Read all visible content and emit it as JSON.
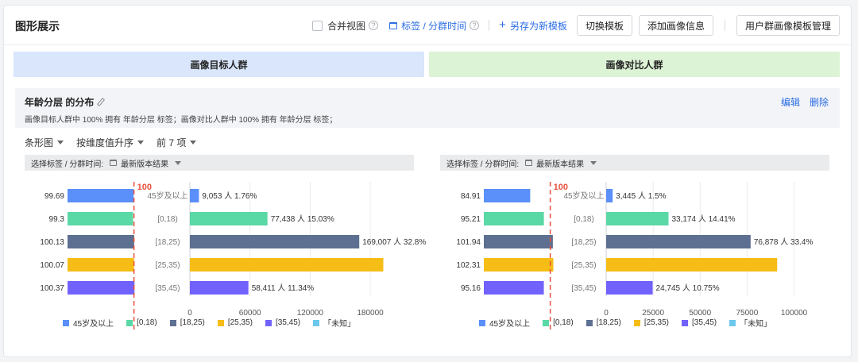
{
  "header": {
    "title": "图形展示",
    "merge_view_label": "合并视图",
    "tag_time_label": "标签 / 分群时间",
    "save_template_label": "另存为新模板",
    "switch_template_label": "切换模板",
    "add_portrait_label": "添加画像信息",
    "manage_template_label": "用户群画像模板管理"
  },
  "segments": {
    "target": "画像目标人群",
    "compare": "画像对比人群"
  },
  "info": {
    "title": "年龄分层 的分布",
    "desc": "画像目标人群中 100% 拥有 年龄分层 标签；画像对比人群中 100% 拥有 年龄分层 标签；",
    "edit": "编辑",
    "delete": "删除"
  },
  "controls": {
    "chart_type": "条形图",
    "sort": "按维度值升序",
    "top_n": "前 7 项"
  },
  "select_bar": {
    "label": "选择标签 / 分群时间:",
    "value": "最新版本结果"
  },
  "colors": {
    "accent": "#2b6de5",
    "ref_line": "#e8513c",
    "series": [
      "#5b8ff9",
      "#5ad8a6",
      "#5d7092",
      "#f6bd16",
      "#7262fd",
      "#6dc8ec"
    ]
  },
  "chart_data": [
    {
      "type": "bar",
      "categories": [
        "45岁及以上",
        "[0,18)",
        "[18,25)",
        "[25,35)",
        "[35,45)"
      ],
      "index_values": [
        99.69,
        99.3,
        100.13,
        100.07,
        100.37
      ],
      "index_ref": 100,
      "index_ref_label": "100",
      "values": [
        9053,
        77438,
        169007,
        193000,
        58411
      ],
      "value_labels": [
        "9,053 人 1.76%",
        "77,438 人 15.03%",
        "169,007 人 32.8%",
        "",
        "58,411 人 11.34%"
      ],
      "xticks": [
        0,
        60000,
        120000,
        180000
      ],
      "xlim": [
        0,
        195000
      ],
      "legend": [
        "45岁及以上",
        "[0,18)",
        "[18,25)",
        "[25,35)",
        "[35,45)",
        "「未知」"
      ]
    },
    {
      "type": "bar",
      "categories": [
        "45岁及以上",
        "[0,18)",
        "[18,25)",
        "[25,35)",
        "[35,45)"
      ],
      "index_values": [
        84.91,
        95.21,
        101.94,
        102.31,
        95.16
      ],
      "index_ref": 100,
      "index_ref_label": "100",
      "values": [
        3445,
        33174,
        76878,
        91000,
        24745
      ],
      "value_labels": [
        "3,445 人 1.5%",
        "33,174 人 14.41%",
        "76,878 人 33.4%",
        "",
        "24,745 人 10.75%"
      ],
      "xticks": [
        0,
        25000,
        50000,
        75000,
        100000
      ],
      "xlim": [
        0,
        104000
      ],
      "legend": [
        "45岁及以上",
        "[0,18)",
        "[18,25)",
        "[25,35)",
        "[35,45)",
        "「未知」"
      ]
    }
  ]
}
